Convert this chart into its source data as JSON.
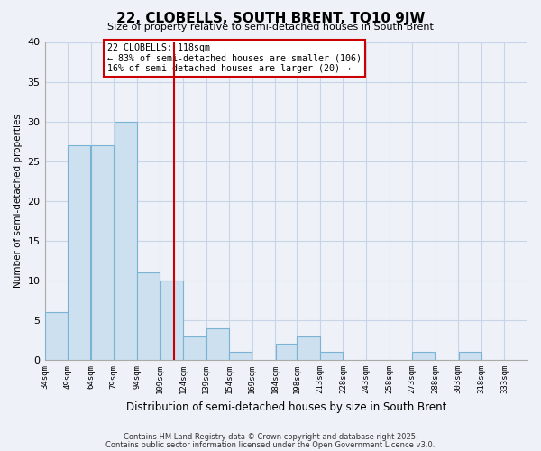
{
  "title": "22, CLOBELLS, SOUTH BRENT, TQ10 9JW",
  "subtitle": "Size of property relative to semi-detached houses in South Brent",
  "xlabel": "Distribution of semi-detached houses by size in South Brent",
  "ylabel": "Number of semi-detached properties",
  "bin_edges": [
    34,
    49,
    64,
    79,
    94,
    109,
    124,
    139,
    154,
    169,
    184,
    198,
    213,
    228,
    243,
    258,
    273,
    288,
    303,
    318,
    333,
    348
  ],
  "counts": [
    6,
    27,
    27,
    30,
    11,
    10,
    3,
    4,
    1,
    0,
    2,
    3,
    1,
    0,
    0,
    0,
    1,
    0,
    1,
    0,
    0
  ],
  "tick_labels": [
    "34sqm",
    "49sqm",
    "64sqm",
    "79sqm",
    "94sqm",
    "109sqm",
    "124sqm",
    "139sqm",
    "154sqm",
    "169sqm",
    "184sqm",
    "198sqm",
    "213sqm",
    "228sqm",
    "243sqm",
    "258sqm",
    "273sqm",
    "288sqm",
    "303sqm",
    "318sqm",
    "333sqm"
  ],
  "bar_color": "#cce0f0",
  "bar_edge_color": "#7ab3d4",
  "grid_color": "#c8d4e8",
  "bg_color": "#eef2f8",
  "vline_x": 118,
  "vline_color": "#cc0000",
  "annotation_text": "22 CLOBELLS: 118sqm\n← 83% of semi-detached houses are smaller (106)\n16% of semi-detached houses are larger (20) →",
  "annotation_box_color": "#ffffff",
  "annotation_box_edge": "#cc0000",
  "ylim": [
    0,
    40
  ],
  "yticks": [
    0,
    5,
    10,
    15,
    20,
    25,
    30,
    35,
    40
  ],
  "footnote1": "Contains HM Land Registry data © Crown copyright and database right 2025.",
  "footnote2": "Contains public sector information licensed under the Open Government Licence v3.0."
}
